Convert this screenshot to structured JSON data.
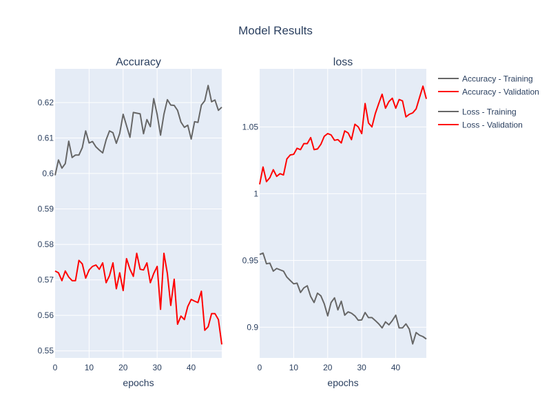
{
  "title": "Model Results",
  "legend": [
    {
      "label": "Accuracy - Training",
      "color": "#666666"
    },
    {
      "label": "Accuracy - Validation",
      "color": "#ff0000"
    },
    {
      "label": "Loss - Training",
      "color": "#666666"
    },
    {
      "label": "Loss - Validation",
      "color": "#ff0000"
    }
  ],
  "chart_data": [
    {
      "type": "line",
      "title": "Accuracy",
      "xlabel": "epochs",
      "ylabel": "",
      "xlim": [
        0,
        49
      ],
      "ylim": [
        0.548,
        0.6295
      ],
      "xticks": [
        0,
        10,
        20,
        30,
        40
      ],
      "yticks": [
        0.55,
        0.56,
        0.57,
        0.58,
        0.59,
        0.6,
        0.61,
        0.62
      ],
      "ytick_labels": [
        "0.55",
        "0.56",
        "0.57",
        "0.58",
        "0.59",
        "0.6",
        "0.61",
        "0.62"
      ],
      "grid": true,
      "series": [
        {
          "name": "Accuracy - Training",
          "color": "#666666",
          "x": [
            0,
            1,
            2,
            3,
            4,
            5,
            6,
            7,
            8,
            9,
            10,
            11,
            12,
            13,
            14,
            15,
            16,
            17,
            18,
            19,
            20,
            21,
            22,
            23,
            24,
            25,
            26,
            27,
            28,
            29,
            30,
            31,
            32,
            33,
            34,
            35,
            36,
            37,
            38,
            39,
            40,
            41,
            42,
            43,
            44,
            45,
            46,
            47,
            48,
            49
          ],
          "y": [
            0.5995,
            0.6038,
            0.6015,
            0.6028,
            0.6091,
            0.6045,
            0.6052,
            0.6052,
            0.6073,
            0.612,
            0.6086,
            0.609,
            0.6075,
            0.6066,
            0.6058,
            0.6095,
            0.612,
            0.6115,
            0.6085,
            0.6113,
            0.6167,
            0.6135,
            0.6102,
            0.6172,
            0.617,
            0.6168,
            0.6112,
            0.6152,
            0.6132,
            0.6211,
            0.6166,
            0.6108,
            0.6167,
            0.6208,
            0.6193,
            0.6192,
            0.6178,
            0.6145,
            0.613,
            0.6136,
            0.6097,
            0.6146,
            0.6144,
            0.6193,
            0.6205,
            0.6248,
            0.6202,
            0.6207,
            0.6178,
            0.6187
          ]
        },
        {
          "name": "Accuracy - Validation",
          "color": "#ff0000",
          "x": [
            0,
            1,
            2,
            3,
            4,
            5,
            6,
            7,
            8,
            9,
            10,
            11,
            12,
            13,
            14,
            15,
            16,
            17,
            18,
            19,
            20,
            21,
            22,
            23,
            24,
            25,
            26,
            27,
            28,
            29,
            30,
            31,
            32,
            33,
            34,
            35,
            36,
            37,
            38,
            39,
            40,
            41,
            42,
            43,
            44,
            45,
            46,
            47,
            48,
            49
          ],
          "y": [
            0.5725,
            0.572,
            0.5698,
            0.5725,
            0.5708,
            0.5698,
            0.5698,
            0.5755,
            0.5745,
            0.5705,
            0.5728,
            0.5738,
            0.5742,
            0.573,
            0.5748,
            0.5692,
            0.5712,
            0.5748,
            0.5675,
            0.572,
            0.567,
            0.576,
            0.573,
            0.571,
            0.5775,
            0.573,
            0.5728,
            0.5748,
            0.5692,
            0.5718,
            0.5738,
            0.5617,
            0.5775,
            0.5718,
            0.5628,
            0.5702,
            0.5575,
            0.5598,
            0.5588,
            0.5625,
            0.5645,
            0.564,
            0.5636,
            0.5668,
            0.5558,
            0.5568,
            0.5605,
            0.5605,
            0.5588,
            0.5518
          ]
        }
      ]
    },
    {
      "type": "line",
      "title": "loss",
      "xlabel": "epochs",
      "ylabel": "",
      "xlim": [
        0,
        49
      ],
      "ylim": [
        0.877,
        1.0935
      ],
      "xticks": [
        0,
        10,
        20,
        30,
        40
      ],
      "yticks": [
        0.9,
        0.95,
        1.0,
        1.05
      ],
      "ytick_labels": [
        "0.9",
        "0.95",
        "1",
        "1.05"
      ],
      "grid": true,
      "series": [
        {
          "name": "Loss - Training",
          "color": "#666666",
          "x": [
            0,
            1,
            2,
            3,
            4,
            5,
            6,
            7,
            8,
            9,
            10,
            11,
            12,
            13,
            14,
            15,
            16,
            17,
            18,
            19,
            20,
            21,
            22,
            23,
            24,
            25,
            26,
            27,
            28,
            29,
            30,
            31,
            32,
            33,
            34,
            35,
            36,
            37,
            38,
            39,
            40,
            41,
            42,
            43,
            44,
            45,
            46,
            47,
            48,
            49
          ],
          "y": [
            0.9545,
            0.9555,
            0.9475,
            0.948,
            0.942,
            0.944,
            0.943,
            0.942,
            0.9375,
            0.935,
            0.9325,
            0.933,
            0.926,
            0.9295,
            0.931,
            0.923,
            0.9185,
            0.9255,
            0.9235,
            0.9175,
            0.9085,
            0.9185,
            0.922,
            0.913,
            0.9195,
            0.909,
            0.9115,
            0.9105,
            0.9085,
            0.9052,
            0.9055,
            0.911,
            0.9072,
            0.9072,
            0.905,
            0.9025,
            0.8995,
            0.904,
            0.9018,
            0.905,
            0.909,
            0.8995,
            0.8995,
            0.9025,
            0.8985,
            0.8875,
            0.896,
            0.894,
            0.893,
            0.8912
          ]
        },
        {
          "name": "Loss - Validation",
          "color": "#ff0000",
          "x": [
            0,
            1,
            2,
            3,
            4,
            5,
            6,
            7,
            8,
            9,
            10,
            11,
            12,
            13,
            14,
            15,
            16,
            17,
            18,
            19,
            20,
            21,
            22,
            23,
            24,
            25,
            26,
            27,
            28,
            29,
            30,
            31,
            32,
            33,
            34,
            35,
            36,
            37,
            38,
            39,
            40,
            41,
            42,
            43,
            44,
            45,
            46,
            47,
            48,
            49
          ],
          "y": [
            1.007,
            1.02,
            1.009,
            1.012,
            1.018,
            1.013,
            1.015,
            1.014,
            1.026,
            1.029,
            1.0295,
            1.034,
            1.033,
            1.0375,
            1.0375,
            1.042,
            1.033,
            1.0335,
            1.037,
            1.043,
            1.045,
            1.044,
            1.04,
            1.0405,
            1.038,
            1.047,
            1.0455,
            1.0405,
            1.052,
            1.05,
            1.045,
            1.0675,
            1.053,
            1.05,
            1.06,
            1.0675,
            1.0745,
            1.064,
            1.069,
            1.0715,
            1.064,
            1.0705,
            1.0695,
            1.0575,
            1.0595,
            1.0605,
            1.0635,
            1.072,
            1.0805,
            1.071
          ]
        }
      ]
    }
  ]
}
